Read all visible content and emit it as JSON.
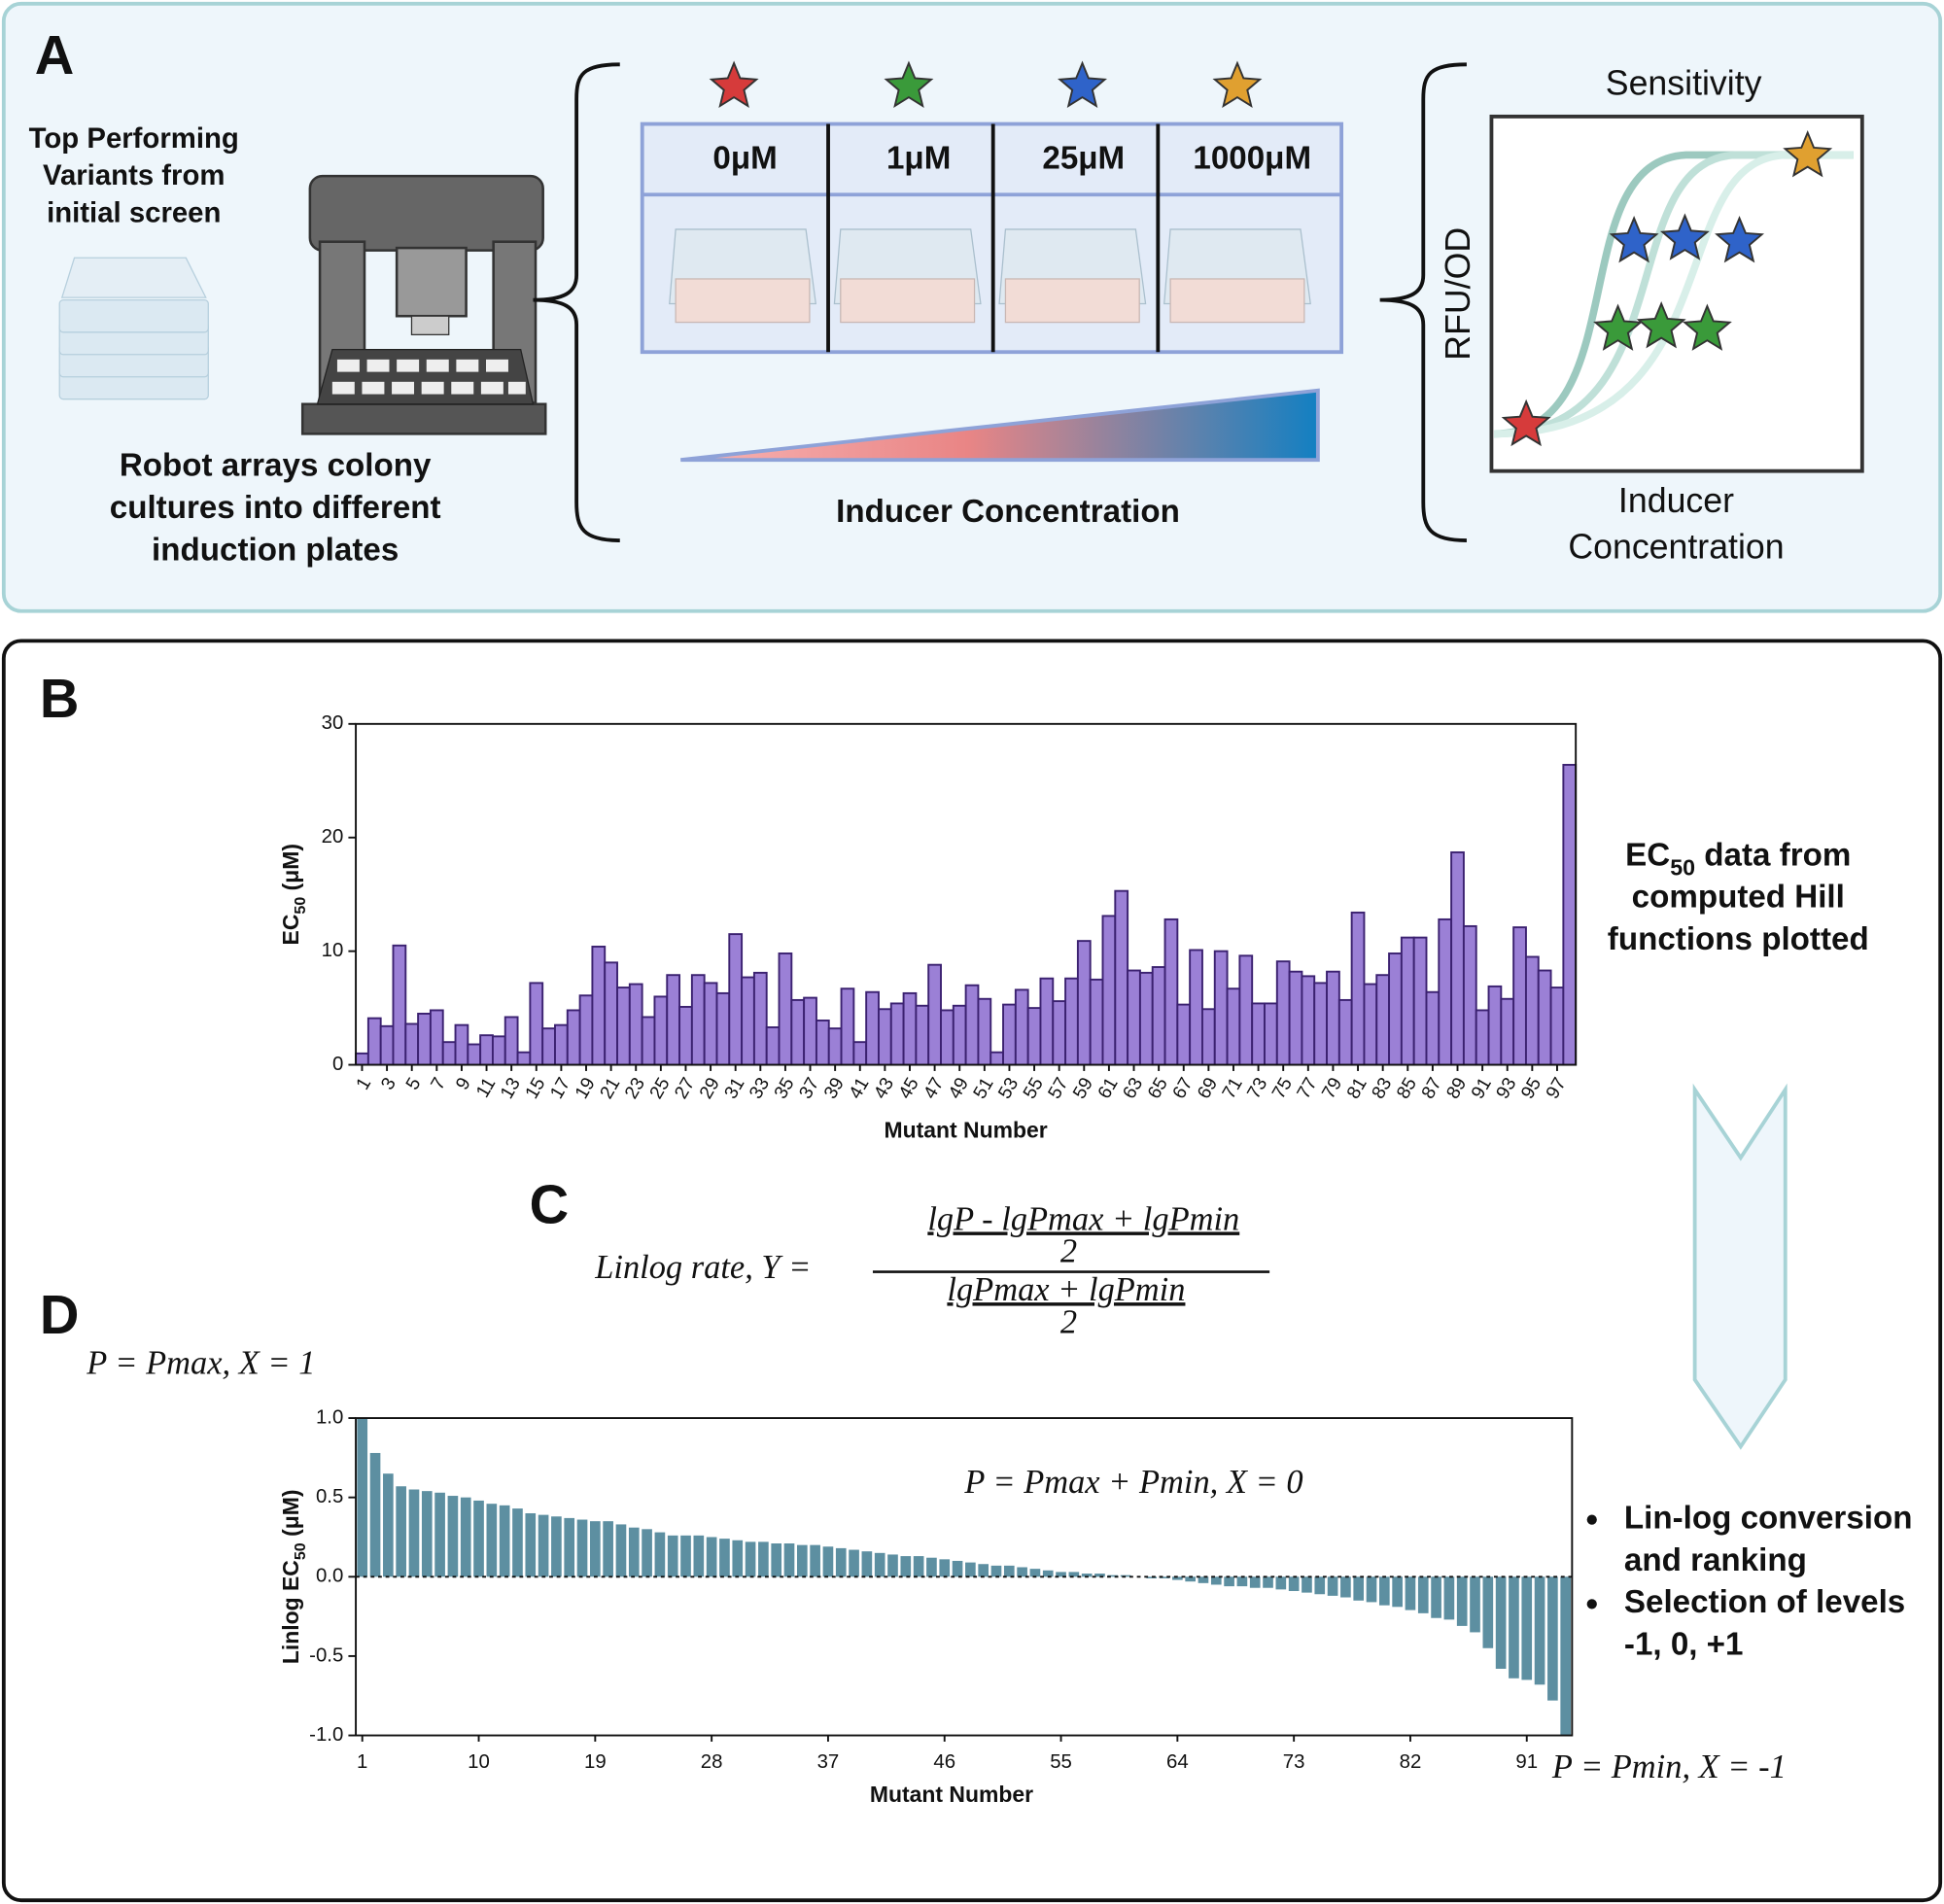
{
  "panel_a": {
    "label": "A",
    "variants_text": [
      "Top Performing",
      "Variants from",
      "initial screen"
    ],
    "robot_text": [
      "Robot arrays colony",
      "cultures into different",
      "induction plates"
    ],
    "concentrations": [
      "0μM",
      "1μM",
      "25μM",
      "1000μM"
    ],
    "gradient_label": "Inducer Concentration",
    "plot_title": "Sensitivity",
    "plot_ylabel": "RFU/OD",
    "plot_xlabel": [
      "Inducer",
      "Concentration"
    ]
  },
  "panel_b": {
    "label": "B",
    "side_text": [
      [
        "EC",
        "50",
        " data from"
      ],
      "computed Hill",
      "functions plotted"
    ]
  },
  "panel_c": {
    "label": "C",
    "formula": {
      "lhs": "Linlog rate,  Y =",
      "num_top": "lgP - lgPmax + lgPmin",
      "num_bottom": "2",
      "den_top": "lgPmax + lgPmin",
      "den_bottom": "2"
    }
  },
  "panel_d": {
    "label": "D",
    "top_note": "P = Pmax,  X = 1",
    "mid_note": "P = Pmax + Pmin,  X  = 0",
    "bottom_note": "P = Pmin,  X = -1",
    "bullets": [
      [
        "Lin-log conversion",
        "and ranking"
      ],
      [
        "Selection of levels",
        "-1, 0, +1"
      ]
    ]
  },
  "chart_data": [
    {
      "type": "bar",
      "ylabel": [
        "EC",
        "50",
        " (μM)"
      ],
      "xlabel": "Mutant Number",
      "color": "#9b80d6",
      "edge_color": "#3b2170",
      "ylim": [
        0,
        30
      ],
      "yticks": [
        0,
        10,
        20,
        30
      ],
      "categories": [
        "1",
        null,
        "3",
        null,
        "5",
        null,
        "7",
        null,
        "9",
        null,
        "11",
        null,
        "13",
        null,
        "15",
        null,
        "17",
        null,
        "19",
        null,
        "21",
        null,
        "23",
        null,
        "25",
        null,
        "27",
        null,
        "29",
        null,
        "31",
        null,
        "33",
        null,
        "35",
        null,
        "37",
        null,
        "39",
        null,
        "41",
        null,
        "43",
        null,
        "45",
        null,
        "47",
        null,
        "49",
        null,
        "51",
        null,
        "53",
        null,
        "55",
        null,
        "57",
        null,
        "59",
        null,
        "61",
        null,
        "63",
        null,
        "65",
        null,
        "67",
        null,
        "69",
        null,
        "71",
        null,
        "73",
        null,
        "75",
        null,
        "77",
        null,
        "79",
        null,
        "81",
        null,
        "83",
        null,
        "85",
        null,
        "87",
        null,
        "89",
        null,
        "91",
        null,
        "93",
        null,
        "95",
        null,
        "97",
        null
      ],
      "values": [
        1.0,
        4.1,
        3.4,
        10.5,
        3.6,
        4.5,
        4.8,
        2.0,
        3.5,
        1.8,
        2.6,
        2.5,
        4.2,
        1.1,
        7.2,
        3.2,
        3.5,
        4.8,
        6.1,
        10.4,
        9.0,
        6.8,
        7.1,
        4.2,
        6.0,
        7.9,
        5.1,
        7.9,
        7.2,
        6.3,
        11.5,
        7.7,
        8.1,
        3.3,
        9.8,
        5.7,
        5.9,
        3.9,
        3.2,
        6.7,
        2.0,
        6.4,
        4.9,
        5.4,
        6.3,
        5.2,
        8.8,
        4.8,
        5.2,
        7.0,
        5.8,
        1.1,
        5.3,
        6.6,
        5.0,
        7.6,
        5.6,
        7.6,
        10.9,
        7.5,
        13.1,
        15.3,
        8.3,
        8.1,
        8.6,
        12.8,
        5.3,
        10.1,
        4.9,
        10.0,
        6.7,
        9.6,
        5.4,
        5.4,
        9.1,
        8.2,
        7.8,
        7.2,
        8.2,
        5.7,
        13.4,
        7.1,
        7.9,
        9.8,
        11.2,
        11.2,
        6.4,
        12.8,
        18.7,
        12.2,
        4.8,
        6.9,
        5.8,
        12.1,
        9.5,
        8.3,
        6.8,
        26.4
      ]
    },
    {
      "type": "bar",
      "ylabel": [
        "Linlog EC",
        "50",
        " (μM)"
      ],
      "xlabel": "Mutant Number",
      "color": "#5d8fa1",
      "ylim": [
        -1,
        1
      ],
      "yticks": [
        {
          "value": 1,
          "label": "1.0"
        },
        0.5,
        {
          "value": 0,
          "label": "0.0"
        },
        -0.5,
        {
          "value": -1,
          "label": "-1.0"
        }
      ],
      "zero_line": true,
      "categories": [
        "1",
        null,
        null,
        null,
        null,
        null,
        null,
        null,
        null,
        "10",
        null,
        null,
        null,
        null,
        null,
        null,
        null,
        null,
        "19",
        null,
        null,
        null,
        null,
        null,
        null,
        null,
        null,
        "28",
        null,
        null,
        null,
        null,
        null,
        null,
        null,
        null,
        "37",
        null,
        null,
        null,
        null,
        null,
        null,
        null,
        null,
        "46",
        null,
        null,
        null,
        null,
        null,
        null,
        null,
        null,
        "55",
        null,
        null,
        null,
        null,
        null,
        null,
        null,
        null,
        "64",
        null,
        null,
        null,
        null,
        null,
        null,
        null,
        null,
        "73",
        null,
        null,
        null,
        null,
        null,
        null,
        null,
        null,
        "82",
        null,
        null,
        null,
        null,
        null,
        null,
        null,
        null,
        "91",
        null,
        null,
        null
      ],
      "values": [
        1.0,
        0.78,
        0.65,
        0.57,
        0.55,
        0.54,
        0.53,
        0.51,
        0.5,
        0.48,
        0.46,
        0.45,
        0.43,
        0.4,
        0.39,
        0.38,
        0.37,
        0.36,
        0.35,
        0.35,
        0.33,
        0.31,
        0.3,
        0.28,
        0.26,
        0.26,
        0.26,
        0.25,
        0.24,
        0.23,
        0.22,
        0.22,
        0.21,
        0.21,
        0.2,
        0.2,
        0.19,
        0.18,
        0.17,
        0.16,
        0.15,
        0.14,
        0.13,
        0.13,
        0.12,
        0.11,
        0.1,
        0.09,
        0.08,
        0.07,
        0.07,
        0.06,
        0.05,
        0.04,
        0.03,
        0.03,
        0.02,
        0.02,
        0.01,
        0.01,
        0.0,
        -0.01,
        -0.01,
        -0.02,
        -0.03,
        -0.04,
        -0.05,
        -0.06,
        -0.06,
        -0.07,
        -0.07,
        -0.08,
        -0.09,
        -0.1,
        -0.11,
        -0.12,
        -0.13,
        -0.15,
        -0.16,
        -0.18,
        -0.19,
        -0.21,
        -0.23,
        -0.26,
        -0.27,
        -0.31,
        -0.35,
        -0.45,
        -0.58,
        -0.64,
        -0.65,
        -0.68,
        -0.78,
        -1.0
      ]
    }
  ]
}
